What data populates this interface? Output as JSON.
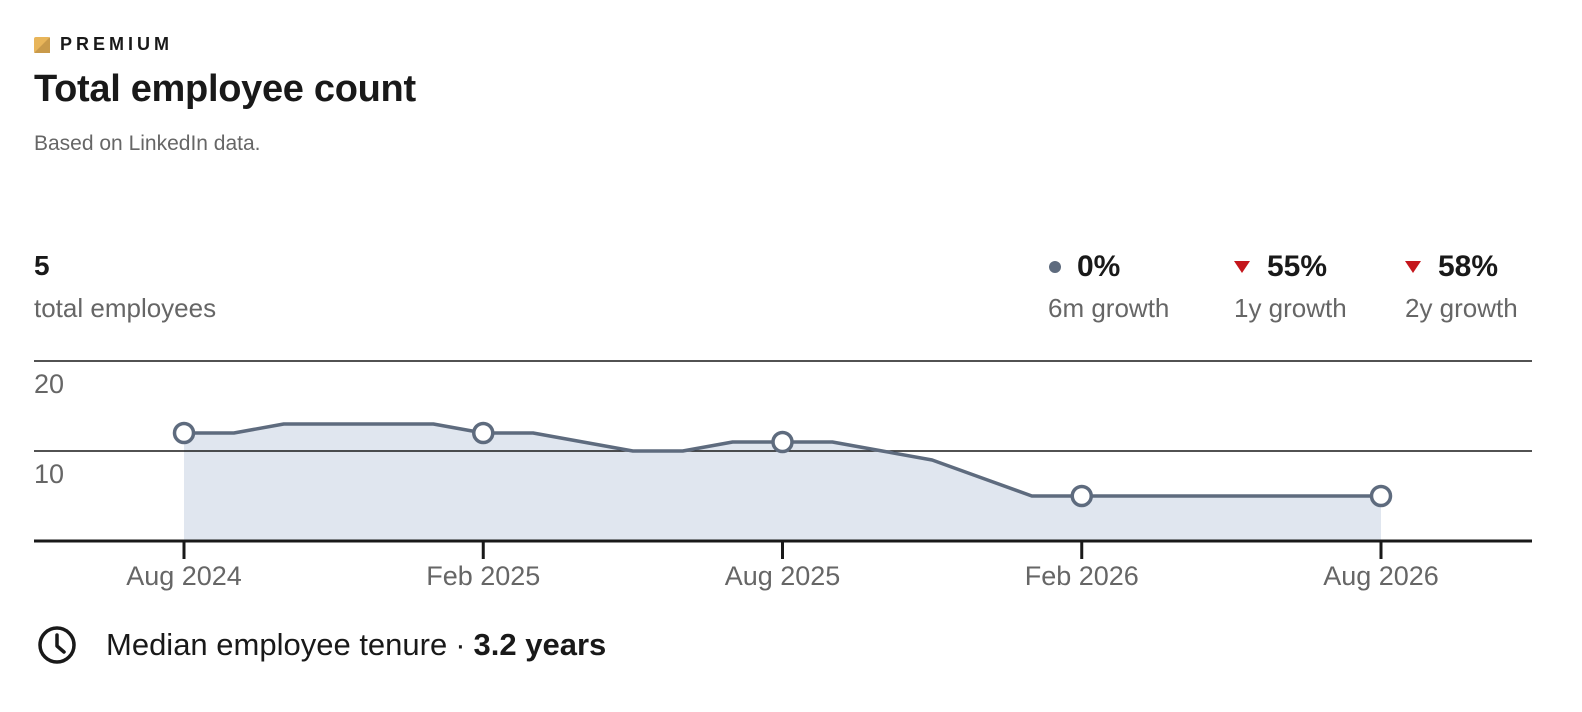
{
  "header": {
    "badge_label": "PREMIUM",
    "title": "Total employee count",
    "subtitle": "Based on LinkedIn data."
  },
  "summary": {
    "total_value": "5",
    "total_label": "total employees",
    "growth": [
      {
        "value": "0%",
        "label": "6m growth",
        "trend": "neutral"
      },
      {
        "value": "55%",
        "label": "1y growth",
        "trend": "down"
      },
      {
        "value": "58%",
        "label": "2y growth",
        "trend": "down"
      }
    ]
  },
  "chart_data": {
    "type": "area",
    "x": [
      "2024-08",
      "2024-09",
      "2024-10",
      "2024-11",
      "2024-12",
      "2025-01",
      "2025-02",
      "2025-03",
      "2025-04",
      "2025-05",
      "2025-06",
      "2025-07",
      "2025-08",
      "2025-09",
      "2025-10",
      "2025-11",
      "2025-12",
      "2026-01",
      "2026-02",
      "2026-03",
      "2026-04",
      "2026-05",
      "2026-06",
      "2026-07",
      "2026-08"
    ],
    "values": [
      12,
      12,
      13,
      13,
      13,
      13,
      12,
      12,
      11,
      10,
      10,
      11,
      11,
      11,
      10,
      9,
      7,
      5,
      5,
      5,
      5,
      5,
      5,
      5,
      5
    ],
    "highlight_x": [
      "2024-08",
      "2025-02",
      "2025-08",
      "2026-02",
      "2026-08"
    ],
    "x_tick_labels": [
      "Aug 2024",
      "Feb 2025",
      "Aug 2025",
      "Feb 2026",
      "Aug 2026"
    ],
    "y_ticks": [
      10,
      20
    ],
    "ylim": [
      0,
      20
    ],
    "grid": true,
    "legend": "none",
    "colors": {
      "line": "#5e6b7e",
      "fill": "#e0e6ef",
      "marker_fill": "#ffffff",
      "axis": "#191919",
      "down": "#c4161c"
    }
  },
  "footer": {
    "icon": "clock-icon",
    "label": "Median employee tenure",
    "separator": "·",
    "value": "3.2 years"
  }
}
